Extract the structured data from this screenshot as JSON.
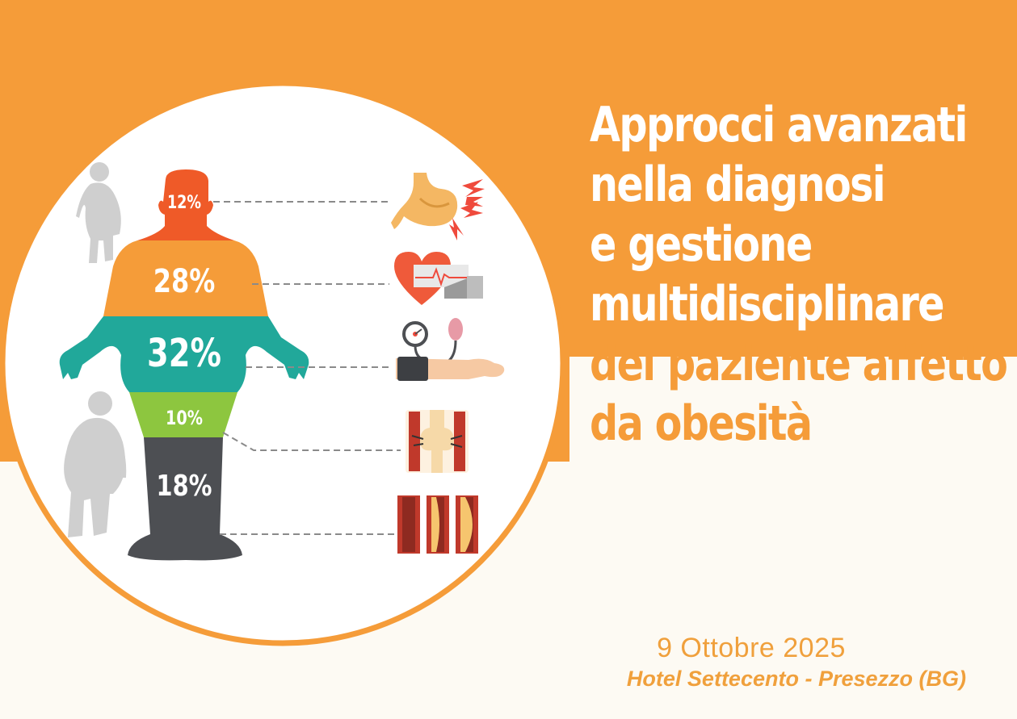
{
  "title": {
    "line1": "Approcci avanzati",
    "line2": "nella diagnosi",
    "line3": "e gestione",
    "line4": "multidisciplinare",
    "line5": "del paziente affetto",
    "line6": "da obesità"
  },
  "event": {
    "date": "9 Ottobre 2025",
    "venue": "Hotel Settecento - Presezzo (BG)"
  },
  "infographic": {
    "segments": [
      {
        "label": "12%",
        "color": "#ef5a28",
        "icon": "stomach-icon"
      },
      {
        "label": "28%",
        "color": "#f59c39",
        "icon": "heart-ecg-icon"
      },
      {
        "label": "32%",
        "color": "#21a89a",
        "icon": "blood-pressure-icon"
      },
      {
        "label": "10%",
        "color": "#8dc63f",
        "icon": "knee-joint-icon"
      },
      {
        "label": "18%",
        "color": "#4d4f53",
        "icon": "artery-plaque-icon"
      }
    ]
  },
  "colors": {
    "accent_orange": "#f59c39",
    "background_cream": "#fdfaf3",
    "silhouette_gray": "#cfcfcf"
  }
}
